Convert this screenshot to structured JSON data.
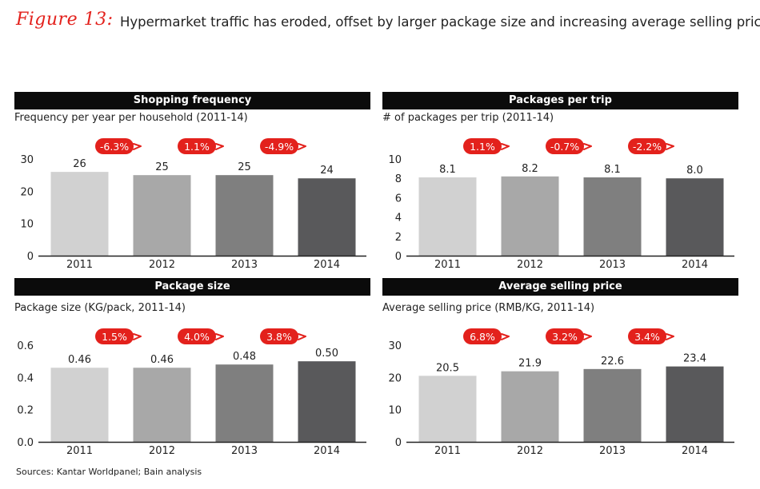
{
  "figure_label": "Figure 13:",
  "figure_title": "Hypermarket traffic has eroded, offset by larger package size and increasing average selling price",
  "source": "Sources: Kantar Worldpanel; Bain analysis",
  "colors": {
    "accent": "#e3211c",
    "header_bg": "#0b0b0b",
    "bars": [
      "#d1d1d1",
      "#a8a8a8",
      "#7f7f7f",
      "#59595b"
    ]
  },
  "chart_data": [
    {
      "type": "bar",
      "title": "Shopping frequency",
      "subtitle": "Frequency per year per household (2011-14)",
      "categories": [
        "2011",
        "2012",
        "2013",
        "2014"
      ],
      "values": [
        26,
        25,
        25,
        24
      ],
      "value_labels": [
        "26",
        "25",
        "25",
        "24"
      ],
      "yticks": [
        "0",
        "10",
        "20",
        "30"
      ],
      "ylim": [
        0,
        30
      ],
      "changes": [
        "-6.3%",
        "1.1%",
        "-4.9%"
      ],
      "xlabel": "",
      "ylabel": ""
    },
    {
      "type": "bar",
      "title": "Packages per trip",
      "subtitle": "# of packages per trip (2011-14)",
      "categories": [
        "2011",
        "2012",
        "2013",
        "2014"
      ],
      "values": [
        8.1,
        8.2,
        8.1,
        8.0
      ],
      "value_labels": [
        "8.1",
        "8.2",
        "8.1",
        "8.0"
      ],
      "yticks": [
        "0",
        "2",
        "4",
        "6",
        "8",
        "10"
      ],
      "ylim": [
        0,
        10
      ],
      "changes": [
        "1.1%",
        "-0.7%",
        "-2.2%"
      ],
      "xlabel": "",
      "ylabel": ""
    },
    {
      "type": "bar",
      "title": "Package size",
      "subtitle": "Package size (KG/pack, 2011-14)",
      "categories": [
        "2011",
        "2012",
        "2013",
        "2014"
      ],
      "values": [
        0.46,
        0.46,
        0.48,
        0.5
      ],
      "value_labels": [
        "0.46",
        "0.46",
        "0.48",
        "0.50"
      ],
      "yticks": [
        "0.0",
        "0.2",
        "0.4",
        "0.6"
      ],
      "ylim": [
        0,
        0.6
      ],
      "changes": [
        "1.5%",
        "4.0%",
        "3.8%"
      ],
      "xlabel": "",
      "ylabel": ""
    },
    {
      "type": "bar",
      "title": "Average selling price",
      "subtitle": "Average selling price (RMB/KG, 2011-14)",
      "categories": [
        "2011",
        "2012",
        "2013",
        "2014"
      ],
      "values": [
        20.5,
        21.9,
        22.6,
        23.4
      ],
      "value_labels": [
        "20.5",
        "21.9",
        "22.6",
        "23.4"
      ],
      "yticks": [
        "0",
        "10",
        "20",
        "30"
      ],
      "ylim": [
        0,
        30
      ],
      "changes": [
        "6.8%",
        "3.2%",
        "3.4%"
      ],
      "xlabel": "",
      "ylabel": ""
    }
  ]
}
